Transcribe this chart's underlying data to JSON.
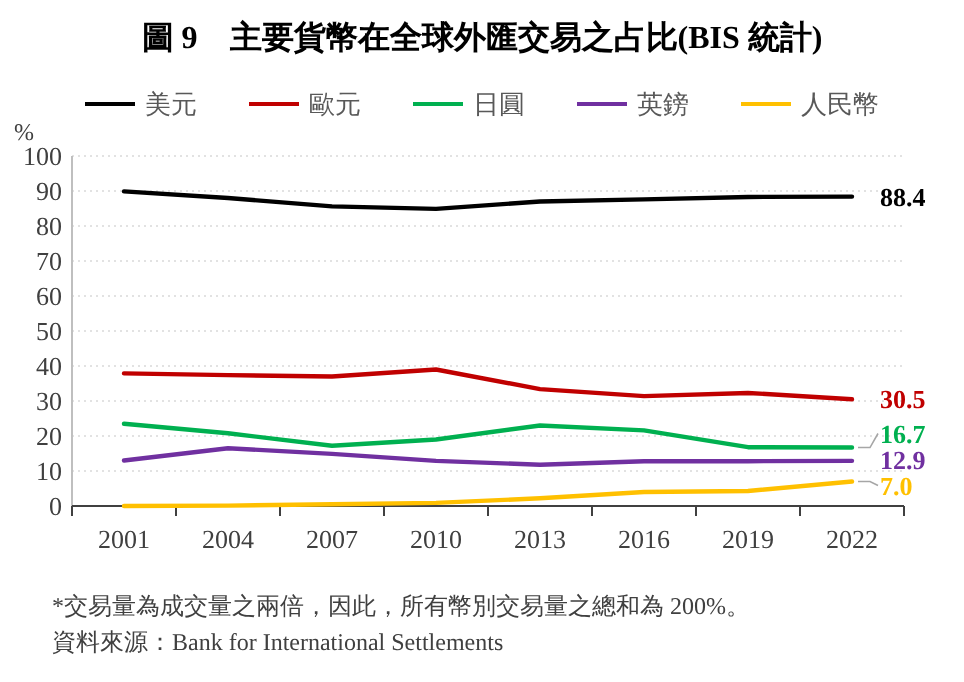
{
  "chart_data": {
    "type": "line",
    "title": "圖 9　主要貨幣在全球外匯交易之占比(BIS 統計)",
    "ylabel": "%",
    "categories": [
      "2001",
      "2004",
      "2007",
      "2010",
      "2013",
      "2016",
      "2019",
      "2022"
    ],
    "series": [
      {
        "name": "美元",
        "color": "#000000",
        "values": [
          89.9,
          88.0,
          85.6,
          84.9,
          87.0,
          87.6,
          88.3,
          88.4
        ],
        "value_labels": [
          null,
          null,
          null,
          null,
          null,
          null,
          null,
          "88.4"
        ]
      },
      {
        "name": "歐元",
        "color": "#c00000",
        "values": [
          37.9,
          37.4,
          37.0,
          39.0,
          33.4,
          31.4,
          32.3,
          30.5
        ],
        "value_labels": [
          null,
          null,
          null,
          null,
          null,
          null,
          null,
          "30.5"
        ]
      },
      {
        "name": "日圓",
        "color": "#00b050",
        "values": [
          23.5,
          20.8,
          17.2,
          19.0,
          23.0,
          21.6,
          16.8,
          16.7
        ],
        "value_labels": [
          null,
          null,
          null,
          null,
          null,
          null,
          null,
          "16.7"
        ]
      },
      {
        "name": "英鎊",
        "color": "#7030a0",
        "values": [
          13.0,
          16.5,
          14.9,
          12.9,
          11.8,
          12.8,
          12.8,
          12.9
        ],
        "value_labels": [
          null,
          null,
          null,
          null,
          null,
          null,
          null,
          "12.9"
        ]
      },
      {
        "name": "人民幣",
        "color": "#ffc000",
        "values": [
          0.0,
          0.1,
          0.5,
          0.9,
          2.2,
          4.0,
          4.3,
          7.0
        ],
        "value_labels": [
          null,
          null,
          null,
          null,
          null,
          null,
          null,
          "7.0"
        ]
      }
    ],
    "ylim": [
      0,
      100
    ],
    "yticks": [
      0,
      10,
      20,
      30,
      40,
      50,
      60,
      70,
      80,
      90,
      100
    ],
    "grid": "y",
    "legend": "top",
    "marker": "none",
    "line_style": "solid",
    "annotations": [
      "*交易量為成交量之兩倍，因此，所有幣別交易量之總和為 200%。",
      "資料來源：Bank for International Settlements"
    ]
  }
}
